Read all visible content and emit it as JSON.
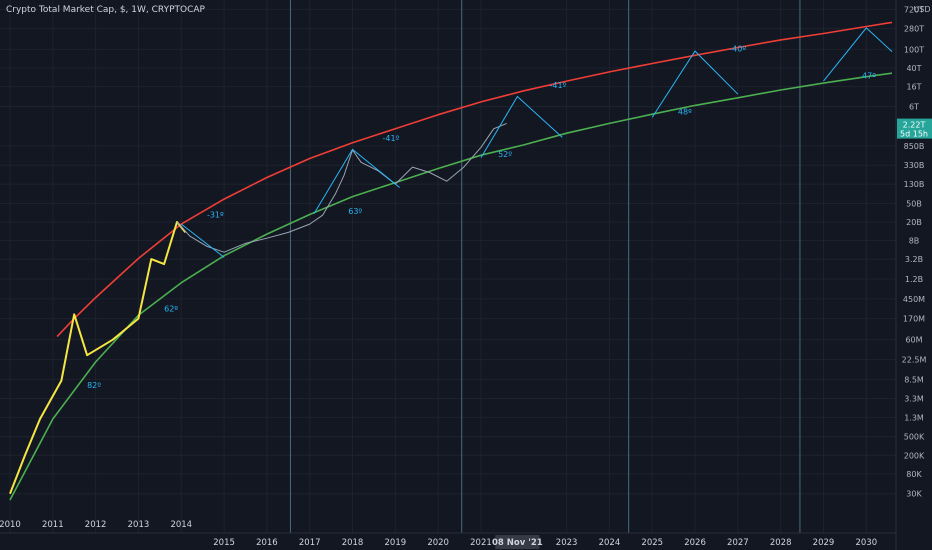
{
  "header": {
    "title": "Crypto Total Market Cap, $, 1W, CRYPTOCAP"
  },
  "chart_data": {
    "type": "line",
    "title": "Crypto Total Market Cap, $, 1W, CRYPTOCAP",
    "y_axis_unit": "USD",
    "y_scale": "log",
    "xlim": [
      2010,
      2030.6
    ],
    "ylim": [
      10000,
      700000000000000
    ],
    "y_ticks": [
      {
        "label": "720T",
        "value": 720000000000000
      },
      {
        "label": "280T",
        "value": 280000000000000
      },
      {
        "label": "100T",
        "value": 100000000000000
      },
      {
        "label": "40T",
        "value": 40000000000000
      },
      {
        "label": "16T",
        "value": 16000000000000
      },
      {
        "label": "6T",
        "value": 6000000000000
      },
      {
        "label": "850B",
        "value": 850000000000
      },
      {
        "label": "330B",
        "value": 330000000000
      },
      {
        "label": "130B",
        "value": 130000000000
      },
      {
        "label": "50B",
        "value": 50000000000
      },
      {
        "label": "20B",
        "value": 20000000000
      },
      {
        "label": "8B",
        "value": 8000000000
      },
      {
        "label": "3.2B",
        "value": 3200000000
      },
      {
        "label": "1.2B",
        "value": 1200000000
      },
      {
        "label": "450M",
        "value": 450000000
      },
      {
        "label": "170M",
        "value": 170000000
      },
      {
        "label": "60M",
        "value": 60000000
      },
      {
        "label": "22.5M",
        "value": 22500000
      },
      {
        "label": "8.5M",
        "value": 8500000
      },
      {
        "label": "3.3M",
        "value": 3300000
      },
      {
        "label": "1.3M",
        "value": 1300000
      },
      {
        "label": "500K",
        "value": 500000
      },
      {
        "label": "200K",
        "value": 200000
      },
      {
        "label": "80K",
        "value": 80000
      },
      {
        "label": "30K",
        "value": 30000
      }
    ],
    "current_value_label": {
      "value_text": "2.22T",
      "countdown": "5d 15h",
      "value": 2220000000000
    },
    "x_ticks_top": [
      "2010",
      "2011",
      "2012",
      "2013",
      "2014"
    ],
    "x_ticks_bottom": [
      "2015",
      "2016",
      "2017",
      "2018",
      "2019",
      "2020",
      "2021",
      "2023",
      "2024",
      "2025",
      "2026",
      "2027",
      "2028",
      "2029",
      "2030"
    ],
    "x_cursor_label": {
      "label": "08 Nov '21",
      "value": 2021.85
    },
    "vertical_markers": [
      2016.55,
      2020.55,
      2024.45,
      2028.45
    ],
    "series": [
      {
        "color": "#ef3e36",
        "x": [
          2011.1,
          2011.5,
          2012,
          2013,
          2014,
          2015,
          2016,
          2017,
          2018,
          2019,
          2020,
          2021,
          2022,
          2023,
          2024,
          2025,
          2026,
          2027,
          2028,
          2029,
          2030,
          2030.6
        ],
        "values": [
          70000000,
          170000000,
          480000000,
          3300000000,
          18000000000,
          62000000000,
          180000000000,
          460000000000,
          1000000000000,
          2000000000000,
          4000000000000,
          7500000000000,
          13000000000000,
          21000000000000,
          33000000000000,
          50000000000000,
          75000000000000,
          110000000000000,
          160000000000000,
          220000000000000,
          310000000000000,
          380000000000000
        ]
      },
      {
        "color": "#4caf50",
        "x": [
          2010,
          2011,
          2012,
          2013,
          2014,
          2015,
          2016,
          2017,
          2018,
          2019,
          2020,
          2021,
          2022,
          2023,
          2024,
          2025,
          2026,
          2027,
          2028,
          2029,
          2030,
          2030.6
        ],
        "values": [
          22000,
          1200000,
          20000000,
          200000000,
          1000000000,
          3800000000,
          11000000000,
          29000000000,
          70000000000,
          140000000000,
          280000000000,
          540000000000,
          900000000000,
          1600000000000,
          2600000000000,
          4100000000000,
          6300000000000,
          9200000000000,
          13500000000000,
          19000000000000,
          26000000000000,
          31000000000000
        ]
      },
      {
        "color": "#f5e642",
        "x": [
          2010,
          2010.35,
          2010.7,
          2011.2,
          2011.5,
          2011.8,
          2012.4,
          2013,
          2013.3,
          2013.6,
          2013.9,
          2014.1
        ],
        "values": [
          30000,
          200000,
          1200000,
          8000000,
          210000000,
          28000000,
          60000000,
          170000000,
          3200000000,
          2500000000,
          20000000000,
          12000000000
        ]
      },
      {
        "color": "#9aa5b5",
        "x": [
          2013.9,
          2014.2,
          2014.6,
          2015.0,
          2015.5,
          2016.0,
          2016.5,
          2017.0,
          2017.3,
          2017.6,
          2017.8,
          2018.0,
          2018.2,
          2018.6,
          2019.0,
          2019.4,
          2019.8,
          2020.2,
          2020.6,
          2021.0,
          2021.3,
          2021.6
        ],
        "values": [
          20000000000,
          10000000000,
          6000000000,
          4500000000,
          7000000000,
          9000000000,
          12000000000,
          18000000000,
          28000000000,
          80000000000,
          200000000000,
          700000000000,
          380000000000,
          250000000000,
          130000000000,
          300000000000,
          230000000000,
          150000000000,
          300000000000,
          800000000000,
          2000000000000,
          2600000000000
        ]
      }
    ],
    "projections": [
      {
        "color": "#29b6f6",
        "x": [
          2014,
          2015
        ],
        "values": [
          18000000000,
          3500000000
        ]
      },
      {
        "color": "#29b6f6",
        "x": [
          2017.1,
          2018,
          2019.1
        ],
        "values": [
          30000000000,
          720000000000,
          110000000000
        ]
      },
      {
        "color": "#29b6f6",
        "x": [
          2021.0,
          2021.85,
          2022.9
        ],
        "values": [
          480000000000,
          9800000000000,
          1300000000000
        ]
      },
      {
        "color": "#29b6f6",
        "x": [
          2025,
          2026,
          2027
        ],
        "values": [
          3500000000000,
          92000000000000,
          11000000000000
        ]
      },
      {
        "color": "#29b6f6",
        "x": [
          2029,
          2030,
          2030.6
        ],
        "values": [
          21000000000000,
          290000000000000,
          90000000000000
        ]
      }
    ],
    "annotations": [
      {
        "text": "82º",
        "x": 2011.8,
        "y": 5500000
      },
      {
        "text": "62º",
        "x": 2013.6,
        "y": 240000000
      },
      {
        "text": "-31º",
        "x": 2014.6,
        "y": 25000000000
      },
      {
        "text": "63º",
        "x": 2017.9,
        "y": 30000000000
      },
      {
        "text": "-41º",
        "x": 2018.7,
        "y": 1100000000000
      },
      {
        "text": "52º",
        "x": 2021.4,
        "y": 500000000000
      },
      {
        "text": "-41º",
        "x": 2022.6,
        "y": 15000000000000
      },
      {
        "text": "48º",
        "x": 2025.6,
        "y": 4000000000000
      },
      {
        "text": "-40º",
        "x": 2026.8,
        "y": 90000000000000
      },
      {
        "text": "47º",
        "x": 2029.9,
        "y": 24000000000000
      }
    ]
  }
}
